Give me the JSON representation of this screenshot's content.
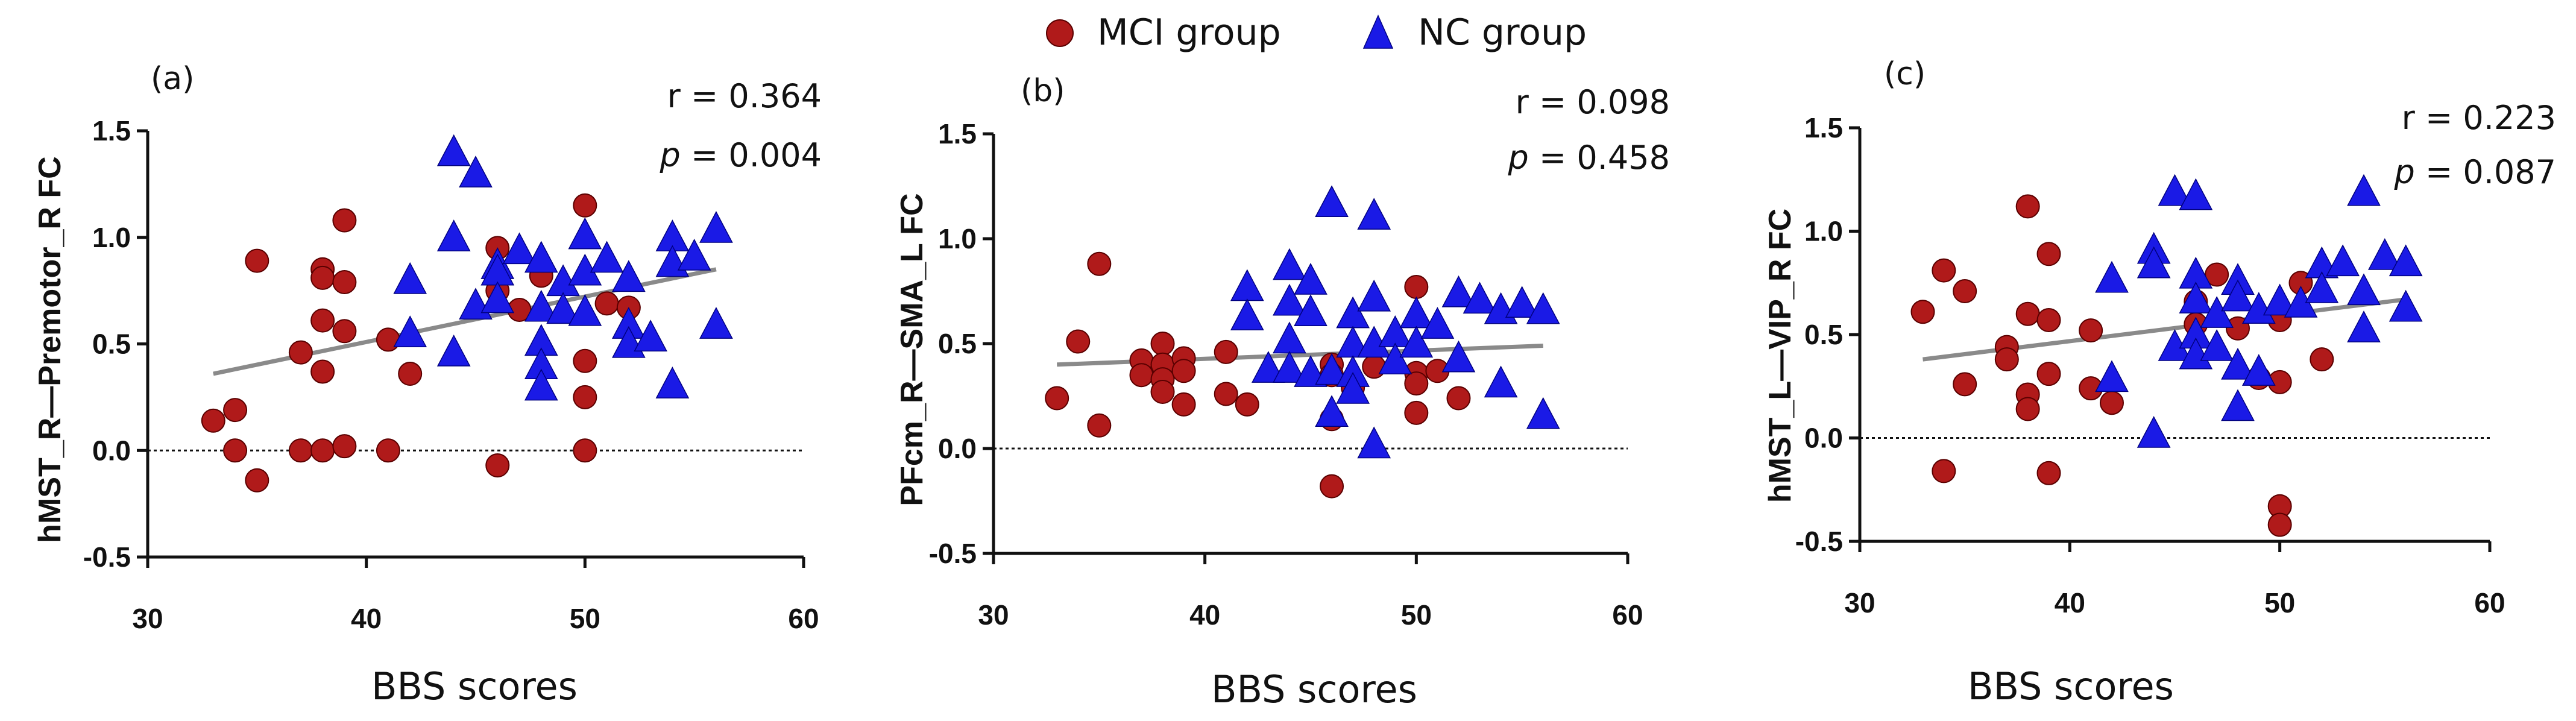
{
  "legend": {
    "mci_label": "MCI group",
    "nc_label": "NC group",
    "mci_color": "#b01a1a",
    "nc_color": "#1a1ae6"
  },
  "chart_data": [
    {
      "type": "scatter",
      "panel_label": "(a)",
      "xlabel": "BBS scores",
      "ylabel": "hMST_R—Premotor_R FC",
      "xlim": [
        30,
        60
      ],
      "ylim": [
        -0.5,
        1.5
      ],
      "xticks": [
        "30",
        "40",
        "50",
        "60"
      ],
      "yticks": [
        "-0.5",
        "0.0",
        "0.5",
        "1.0",
        "1.5"
      ],
      "r_text": "r = 0.364",
      "p_symbol": "p",
      "p_value": " = 0.004",
      "fit": {
        "x": [
          33,
          56
        ],
        "y": [
          0.36,
          0.85
        ]
      },
      "series": [
        {
          "name": "MCI group",
          "marker": "circle",
          "points": [
            [
              33,
              0.14
            ],
            [
              34,
              0.19
            ],
            [
              34,
              0.0
            ],
            [
              35,
              0.89
            ],
            [
              35,
              -0.14
            ],
            [
              37,
              0.46
            ],
            [
              37,
              0.0
            ],
            [
              38,
              0.85
            ],
            [
              38,
              0.81
            ],
            [
              38,
              0.61
            ],
            [
              38,
              0.37
            ],
            [
              38,
              0.0
            ],
            [
              39,
              1.08
            ],
            [
              39,
              0.79
            ],
            [
              39,
              0.56
            ],
            [
              39,
              0.02
            ],
            [
              41,
              0.52
            ],
            [
              41,
              0.0
            ],
            [
              42,
              0.36
            ],
            [
              46,
              0.95
            ],
            [
              46,
              0.75
            ],
            [
              46,
              -0.07
            ],
            [
              47,
              0.66
            ],
            [
              48,
              0.82
            ],
            [
              50,
              1.15
            ],
            [
              50,
              0.42
            ],
            [
              50,
              0.25
            ],
            [
              50,
              0.0
            ],
            [
              51,
              0.69
            ],
            [
              52,
              0.67
            ]
          ]
        },
        {
          "name": "NC group",
          "marker": "triangle",
          "points": [
            [
              42,
              0.8
            ],
            [
              42,
              0.55
            ],
            [
              44,
              1.4
            ],
            [
              44,
              1.0
            ],
            [
              44,
              0.46
            ],
            [
              45,
              1.3
            ],
            [
              45,
              0.68
            ],
            [
              46,
              0.87
            ],
            [
              46,
              0.84
            ],
            [
              46,
              0.71
            ],
            [
              47,
              0.94
            ],
            [
              48,
              0.9
            ],
            [
              48,
              0.67
            ],
            [
              48,
              0.51
            ],
            [
              48,
              0.4
            ],
            [
              48,
              0.3
            ],
            [
              49,
              0.79
            ],
            [
              49,
              0.66
            ],
            [
              50,
              1.01
            ],
            [
              50,
              0.84
            ],
            [
              50,
              0.65
            ],
            [
              51,
              0.9
            ],
            [
              52,
              0.81
            ],
            [
              52,
              0.59
            ],
            [
              52,
              0.5
            ],
            [
              53,
              0.53
            ],
            [
              54,
              1.0
            ],
            [
              54,
              0.88
            ],
            [
              54,
              0.31
            ],
            [
              55,
              0.91
            ],
            [
              56,
              1.04
            ],
            [
              56,
              0.59
            ]
          ]
        }
      ]
    },
    {
      "type": "scatter",
      "panel_label": "(b)",
      "xlabel": "BBS scores",
      "ylabel": "PFcm_R—SMA_L FC",
      "xlim": [
        30,
        60
      ],
      "ylim": [
        -0.5,
        1.5
      ],
      "xticks": [
        "30",
        "40",
        "50",
        "60"
      ],
      "yticks": [
        "-0.5",
        "0.0",
        "0.5",
        "1.0",
        "1.5"
      ],
      "r_text": "r = 0.098",
      "p_symbol": "p",
      "p_value": " = 0.458",
      "fit": {
        "x": [
          33,
          56
        ],
        "y": [
          0.4,
          0.49
        ]
      },
      "series": [
        {
          "name": "MCI group",
          "marker": "circle",
          "points": [
            [
              33,
              0.24
            ],
            [
              34,
              0.51
            ],
            [
              35,
              0.88
            ],
            [
              35,
              0.11
            ],
            [
              37,
              0.42
            ],
            [
              37,
              0.35
            ],
            [
              38,
              0.5
            ],
            [
              38,
              0.4
            ],
            [
              38,
              0.33
            ],
            [
              38,
              0.27
            ],
            [
              39,
              0.43
            ],
            [
              39,
              0.37
            ],
            [
              39,
              0.21
            ],
            [
              41,
              0.46
            ],
            [
              41,
              0.26
            ],
            [
              42,
              0.21
            ],
            [
              46,
              0.4
            ],
            [
              46,
              0.35
            ],
            [
              46,
              0.14
            ],
            [
              46,
              -0.18
            ],
            [
              47,
              0.29
            ],
            [
              48,
              0.39
            ],
            [
              50,
              0.77
            ],
            [
              50,
              0.36
            ],
            [
              50,
              0.31
            ],
            [
              50,
              0.17
            ],
            [
              51,
              0.37
            ],
            [
              52,
              0.24
            ]
          ]
        },
        {
          "name": "NC group",
          "marker": "triangle",
          "points": [
            [
              42,
              0.77
            ],
            [
              42,
              0.63
            ],
            [
              43,
              0.38
            ],
            [
              44,
              0.87
            ],
            [
              44,
              0.7
            ],
            [
              44,
              0.52
            ],
            [
              44,
              0.38
            ],
            [
              45,
              0.8
            ],
            [
              45,
              0.65
            ],
            [
              45,
              0.36
            ],
            [
              46,
              1.17
            ],
            [
              46,
              0.37
            ],
            [
              46,
              0.17
            ],
            [
              47,
              0.64
            ],
            [
              47,
              0.5
            ],
            [
              47,
              0.36
            ],
            [
              47,
              0.28
            ],
            [
              48,
              1.11
            ],
            [
              48,
              0.72
            ],
            [
              48,
              0.5
            ],
            [
              48,
              0.02
            ],
            [
              49,
              0.55
            ],
            [
              49,
              0.42
            ],
            [
              50,
              0.64
            ],
            [
              50,
              0.5
            ],
            [
              51,
              0.59
            ],
            [
              52,
              0.74
            ],
            [
              52,
              0.43
            ],
            [
              53,
              0.71
            ],
            [
              54,
              0.66
            ],
            [
              54,
              0.31
            ],
            [
              55,
              0.69
            ],
            [
              56,
              0.66
            ],
            [
              56,
              0.16
            ]
          ]
        }
      ]
    },
    {
      "type": "scatter",
      "panel_label": "(c)",
      "xlabel": "BBS scores",
      "ylabel": "hMST_L—VIP_R FC",
      "xlim": [
        30,
        60
      ],
      "ylim": [
        -0.5,
        1.5
      ],
      "xticks": [
        "30",
        "40",
        "50",
        "60"
      ],
      "yticks": [
        "-0.5",
        "0.0",
        "0.5",
        "1.0",
        "1.5"
      ],
      "r_text": "r = 0.223",
      "p_symbol": "p",
      "p_value": " = 0.087",
      "fit": {
        "x": [
          33,
          56
        ],
        "y": [
          0.38,
          0.67
        ]
      },
      "series": [
        {
          "name": "MCI group",
          "marker": "circle",
          "points": [
            [
              33,
              0.61
            ],
            [
              34,
              0.81
            ],
            [
              34,
              -0.16
            ],
            [
              35,
              0.71
            ],
            [
              35,
              0.26
            ],
            [
              37,
              0.44
            ],
            [
              37,
              0.38
            ],
            [
              38,
              1.12
            ],
            [
              38,
              0.6
            ],
            [
              38,
              0.21
            ],
            [
              38,
              0.14
            ],
            [
              39,
              0.89
            ],
            [
              39,
              0.57
            ],
            [
              39,
              0.31
            ],
            [
              39,
              -0.17
            ],
            [
              41,
              0.52
            ],
            [
              41,
              0.24
            ],
            [
              42,
              0.17
            ],
            [
              46,
              0.66
            ],
            [
              46,
              0.55
            ],
            [
              47,
              0.79
            ],
            [
              48,
              0.53
            ],
            [
              49,
              0.29
            ],
            [
              50,
              0.57
            ],
            [
              50,
              0.27
            ],
            [
              50,
              -0.33
            ],
            [
              50,
              -0.42
            ],
            [
              51,
              0.75
            ],
            [
              52,
              0.38
            ]
          ]
        },
        {
          "name": "NC group",
          "marker": "triangle",
          "points": [
            [
              42,
              0.77
            ],
            [
              42,
              0.29
            ],
            [
              44,
              0.91
            ],
            [
              44,
              0.84
            ],
            [
              44,
              0.02
            ],
            [
              45,
              1.19
            ],
            [
              45,
              0.44
            ],
            [
              46,
              1.17
            ],
            [
              46,
              0.79
            ],
            [
              46,
              0.67
            ],
            [
              46,
              0.5
            ],
            [
              46,
              0.4
            ],
            [
              47,
              0.6
            ],
            [
              47,
              0.44
            ],
            [
              48,
              0.76
            ],
            [
              48,
              0.68
            ],
            [
              48,
              0.35
            ],
            [
              48,
              0.15
            ],
            [
              49,
              0.62
            ],
            [
              49,
              0.32
            ],
            [
              50,
              0.66
            ],
            [
              51,
              0.65
            ],
            [
              52,
              0.84
            ],
            [
              52,
              0.72
            ],
            [
              53,
              0.85
            ],
            [
              54,
              1.19
            ],
            [
              54,
              0.71
            ],
            [
              54,
              0.53
            ],
            [
              55,
              0.88
            ],
            [
              56,
              0.85
            ],
            [
              56,
              0.63
            ]
          ]
        }
      ]
    }
  ]
}
